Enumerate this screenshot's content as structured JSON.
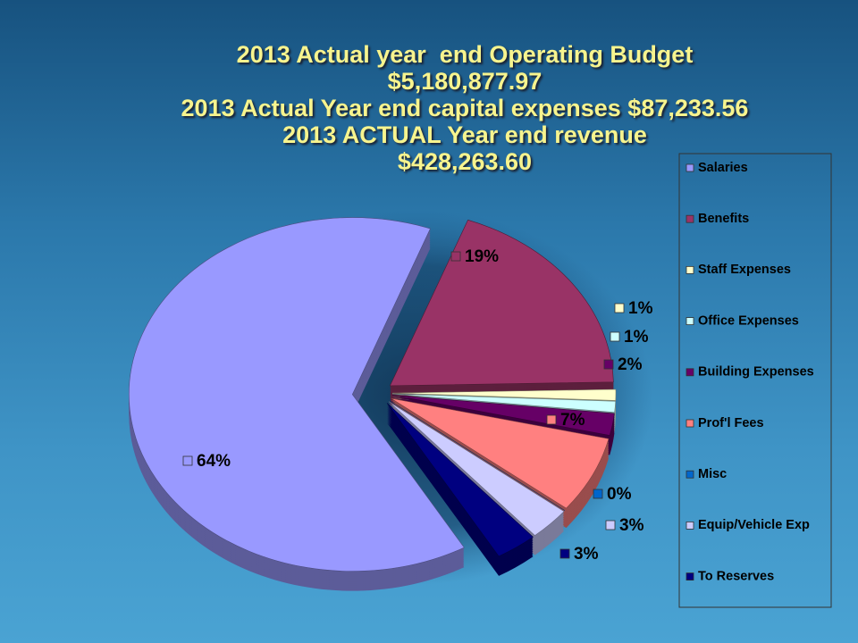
{
  "chart_data": {
    "type": "pie",
    "title": [
      "2013 Actual year  end Operating Budget",
      "$5,180,877.97",
      "2013 Actual Year end capital expenses $87,233.56",
      "2013 ACTUAL Year end revenue",
      "$428,263.60"
    ],
    "categories": [
      "Salaries",
      "Benefits",
      "Staff Expenses",
      "Office Expenses",
      "Building Expenses",
      "Prof'l Fees",
      "Misc",
      "Equip/Vehicle Exp",
      "To Reserves"
    ],
    "values": [
      64,
      19,
      1,
      1,
      2,
      7,
      0,
      3,
      3
    ],
    "value_labels": [
      "64%",
      "19%",
      "1%",
      "1%",
      "2%",
      "7%",
      "0%",
      "3%",
      "3%"
    ],
    "colors": [
      "#9999ff",
      "#993366",
      "#ffffcc",
      "#ccffff",
      "#660066",
      "#ff8080",
      "#0066cc",
      "#ccccff",
      "#000080"
    ],
    "legend": "right"
  }
}
